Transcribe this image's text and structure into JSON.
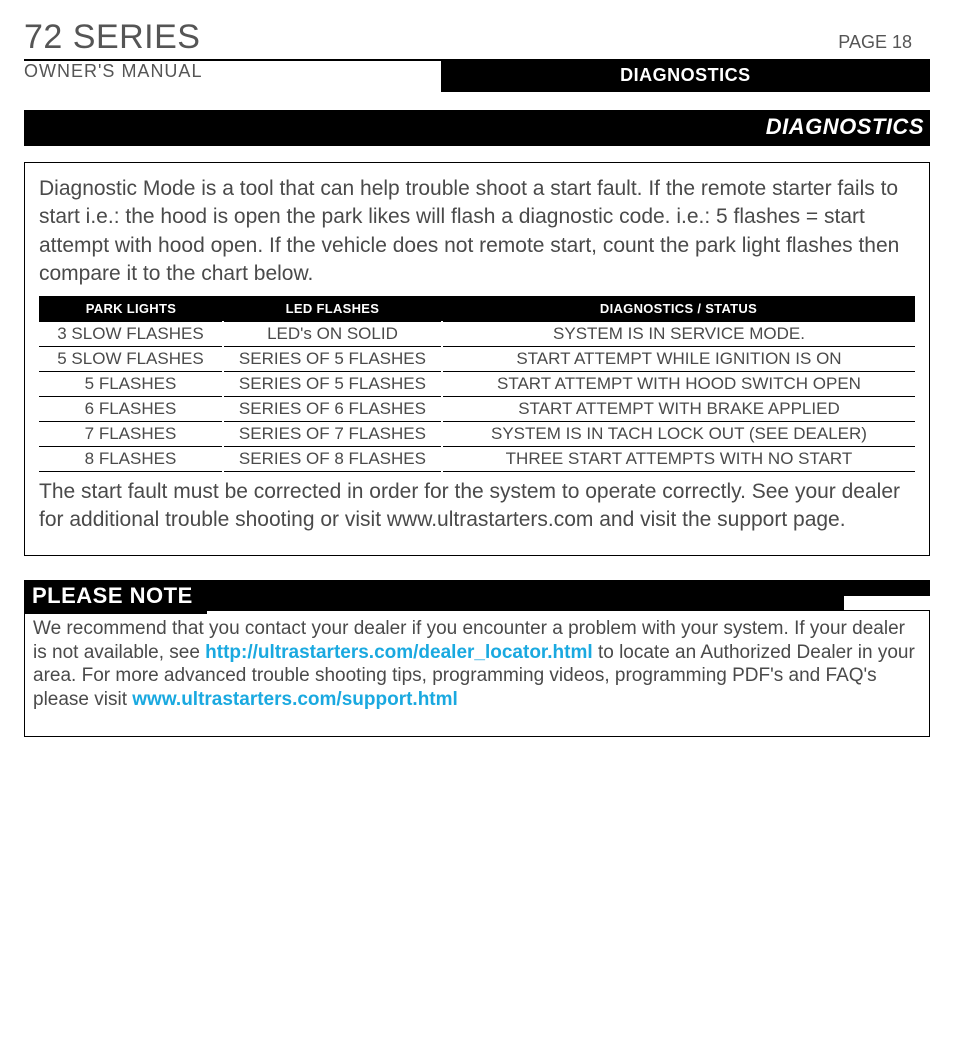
{
  "header": {
    "title": "72 SERIES",
    "page": "PAGE 18",
    "subtitle": "OWNER'S  MANUAL",
    "tab": "DIAGNOSTICS"
  },
  "section_title": "DIAGNOSTICS",
  "intro": "Diagnostic Mode is a tool that can help trouble shoot a start fault. If the remote starter fails to start i.e.: the hood is open the park likes will flash a diagnostic code. i.e.: 5 flashes = start attempt with hood open. If the vehicle does not remote start, count the park light flashes then compare it to the chart below.",
  "table": {
    "headers": [
      "PARK LIGHTS",
      "LED FLASHES",
      "DIAGNOSTICS / STATUS"
    ],
    "rows": [
      [
        "3 SLOW FLASHES",
        "LED's ON SOLID",
        "SYSTEM IS IN SERVICE MODE."
      ],
      [
        "5 SLOW FLASHES",
        "SERIES OF 5 FLASHES",
        "START ATTEMPT WHILE IGNITION IS ON"
      ],
      [
        "5 FLASHES",
        "SERIES OF 5 FLASHES",
        "START ATTEMPT WITH HOOD SWITCH OPEN"
      ],
      [
        "6 FLASHES",
        "SERIES OF 6 FLASHES",
        "START ATTEMPT WITH BRAKE APPLIED"
      ],
      [
        "7 FLASHES",
        "SERIES OF 7 FLASHES",
        "SYSTEM IS IN TACH LOCK OUT (SEE DEALER)"
      ],
      [
        "8 FLASHES",
        "SERIES OF 8 FLASHES",
        "THREE START ATTEMPTS WITH NO START"
      ]
    ]
  },
  "outro": "The start fault must be corrected in order for the system to operate correctly. See your dealer for additional trouble shooting or visit www.ultrastarters.com and visit the support page.",
  "note": {
    "heading": "PLEASE NOTE",
    "pre1": "We recommend that you contact your dealer if you encounter a problem with your system. If your dealer is not available, see ",
    "link1": "http://ultrastarters.com/dealer_locator.html",
    "mid": " to locate an Authorized Dealer in your area. For more advanced trouble shooting tips, programming videos, programming PDF's and FAQ's please  visit ",
    "link2": "www.ultrastarters.com/support.html"
  },
  "colors": {
    "text": "#4a4a4a",
    "bar_bg": "#000000",
    "bar_fg": "#ffffff",
    "link": "#1aa9e0",
    "page_bg": "#ffffff"
  },
  "fonts": {
    "title_size_pt": 26,
    "body_size_pt": 16,
    "table_header_pt": 10,
    "table_cell_pt": 13
  }
}
